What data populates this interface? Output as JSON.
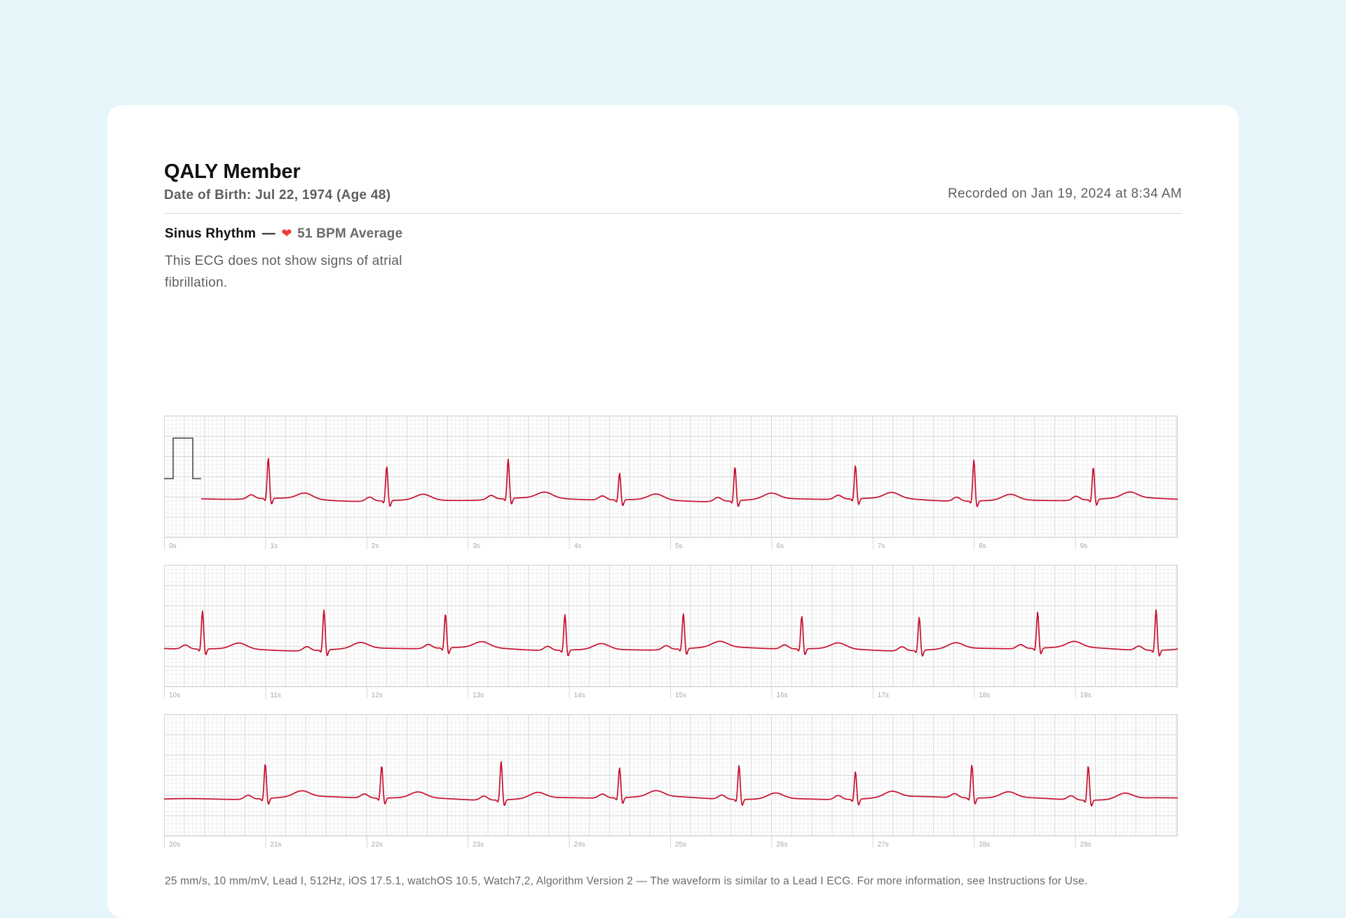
{
  "patient": {
    "name": "QALY Member",
    "dob_line": "Date of Birth: Jul 22, 1974 (Age 48)"
  },
  "recorded_line": "Recorded on Jan 19, 2024 at 8:34 AM",
  "result": {
    "classification": "Sinus Rhythm",
    "separator": "—",
    "heart_icon": "heart-icon",
    "bpm_text": "51 BPM Average",
    "description": "This ECG does not show signs of atrial fibrillation."
  },
  "colors": {
    "background": "#e6f5fa",
    "card": "#ffffff",
    "waveform": "#c8102e",
    "heart": "#ef3b3b",
    "grid_minor": "#ececec",
    "grid_major": "#d6d6d6"
  },
  "chart_data": {
    "type": "line",
    "heart_rate_bpm": 51,
    "paper_speed": "25 mm/s",
    "gain": "10 mm/mV",
    "strips": [
      {
        "time_labels": [
          "0s",
          "1s",
          "2s",
          "3s",
          "4s",
          "5s",
          "6s",
          "7s",
          "8s",
          "9s"
        ],
        "start_s": 0,
        "end_s": 10,
        "calibration_pulse": true,
        "beats": [
          {
            "t": 1.03,
            "a": 1.0
          },
          {
            "t": 2.2,
            "a": 0.85
          },
          {
            "t": 3.4,
            "a": 0.97
          },
          {
            "t": 4.5,
            "a": 0.66
          },
          {
            "t": 5.64,
            "a": 0.84
          },
          {
            "t": 6.83,
            "a": 0.82
          },
          {
            "t": 8.0,
            "a": 1.02
          },
          {
            "t": 9.18,
            "a": 0.8
          }
        ]
      },
      {
        "time_labels": [
          "10s",
          "11s",
          "12s",
          "13s",
          "14s",
          "15s",
          "16s",
          "17s",
          "18s",
          "19s"
        ],
        "start_s": 10,
        "end_s": 20,
        "calibration_pulse": false,
        "beats": [
          {
            "t": 10.38,
            "a": 0.94
          },
          {
            "t": 11.58,
            "a": 0.99
          },
          {
            "t": 12.78,
            "a": 0.84
          },
          {
            "t": 13.96,
            "a": 0.88
          },
          {
            "t": 15.13,
            "a": 0.87
          },
          {
            "t": 16.3,
            "a": 0.81
          },
          {
            "t": 17.46,
            "a": 0.82
          },
          {
            "t": 18.63,
            "a": 0.89
          },
          {
            "t": 19.8,
            "a": 1.0
          }
        ]
      },
      {
        "time_labels": [
          "20s",
          "21s",
          "22s",
          "23s",
          "24s",
          "25s",
          "26s",
          "27s",
          "28s",
          "29s"
        ],
        "start_s": 20,
        "end_s": 30,
        "calibration_pulse": false,
        "beats": [
          {
            "t": 21.0,
            "a": 0.86
          },
          {
            "t": 22.15,
            "a": 0.8
          },
          {
            "t": 23.33,
            "a": 0.95
          },
          {
            "t": 24.5,
            "a": 0.74
          },
          {
            "t": 25.68,
            "a": 0.84
          },
          {
            "t": 26.83,
            "a": 0.68
          },
          {
            "t": 27.98,
            "a": 0.82
          },
          {
            "t": 29.13,
            "a": 0.85
          }
        ]
      }
    ]
  },
  "footer": "25 mm/s, 10 mm/mV, Lead I, 512Hz, iOS 17.5.1, watchOS 10.5, Watch7,2, Algorithm Version 2 — The waveform is similar to a Lead I ECG. For more information, see Instructions for Use."
}
